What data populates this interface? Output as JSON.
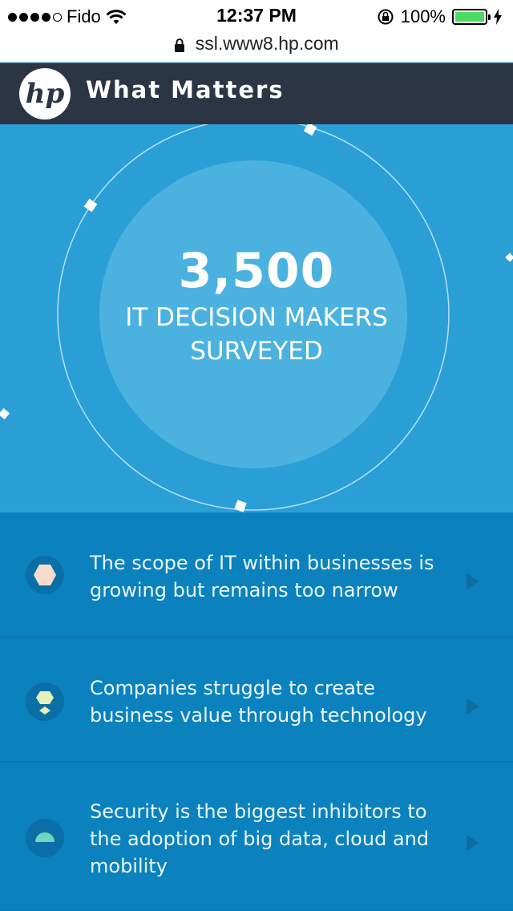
{
  "status_bar": {
    "carrier": "Fido",
    "signal_bars_filled": 4,
    "signal_bars_total": 5,
    "time": "12:37 PM",
    "battery_percent": "100%",
    "icons": [
      "signal-dots-icon",
      "wifi-icon",
      "rotation-lock-icon",
      "battery-icon",
      "charging-bolt-icon"
    ]
  },
  "browser": {
    "url": "ssl.www8.hp.com",
    "icons": [
      "lock-icon"
    ]
  },
  "header": {
    "title": "What Matters",
    "logo_icon": "hp-logo-icon",
    "background_color": "#2b3544"
  },
  "hero": {
    "stat": "3,500",
    "label": "IT DECISION MAKERS SURVEYED",
    "background_color": "#2a9fd6"
  },
  "findings": [
    {
      "text": "The scope of IT within businesses is growing but remains too narrow",
      "icon": "hexagon-icon",
      "icon_color": "#f6dccc"
    },
    {
      "text": "Companies struggle to create business value through technology",
      "icon": "hexagon-split-icon",
      "icon_color": "#e3f2b6"
    },
    {
      "text": "Security is the biggest inhibitors to the adoption of big data, cloud and mobility",
      "icon": "half-circle-icon",
      "icon_color": "#6fd6c2"
    }
  ]
}
